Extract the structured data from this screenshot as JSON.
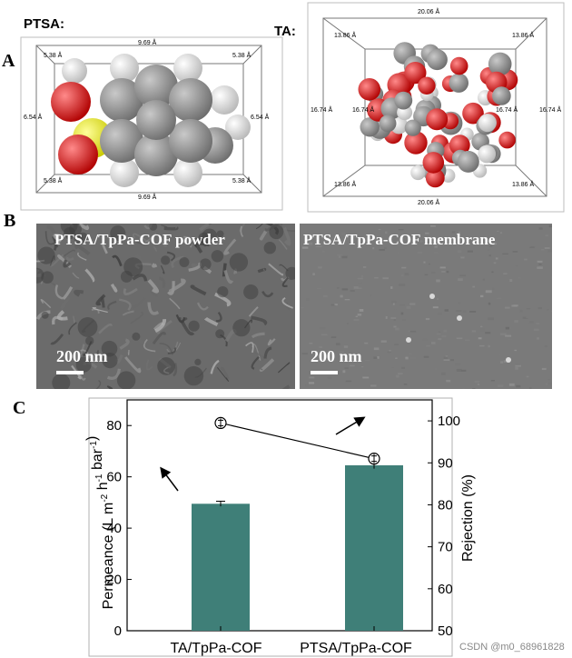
{
  "panels": {
    "a": {
      "letter": "A"
    },
    "b": {
      "letter": "B"
    },
    "c": {
      "letter": "C"
    }
  },
  "ptsa": {
    "title": "PTSA:",
    "top": "9.69 Å",
    "bottom": "9.69 Å",
    "left": "6.54 Å",
    "right": "6.54 Å",
    "corner_tl": "5.38 Å",
    "corner_tr": "5.38 Å",
    "corner_bl": "5.38 Å",
    "corner_br": "5.38 Å"
  },
  "ta": {
    "title": "TA:",
    "top": "20.06 Å",
    "bottom": "20.06 Å",
    "left": "16.74 Å",
    "right": "16.74 Å",
    "inner_left": "16.74 Å",
    "inner_right": "16.74 Å",
    "corner_tl": "13.86 Å",
    "corner_tr": "13.86 Å",
    "corner_bl": "13.86 Å",
    "corner_br": "13.86 Å"
  },
  "sem": {
    "left_title": "PTSA/TpPa-COF powder",
    "right_title": "PTSA/TpPa-COF membrane",
    "left_scale": "200 nm",
    "right_scale": "200 nm"
  },
  "atom_colors": {
    "carbon": "#8a8a8a",
    "hydrogen": "#e6e6e6",
    "oxygen": "#e01515",
    "sulfur": "#e8e83a"
  },
  "chart_data": {
    "type": "bar",
    "categories": [
      "TA/TpPa-COF",
      "PTSA/TpPa-COF"
    ],
    "series": [
      {
        "axis": "left",
        "values": [
          49.5,
          64.5
        ],
        "errors": [
          1.0,
          1.3
        ],
        "color": "#3f7f78"
      },
      {
        "axis": "right",
        "values": [
          99.5,
          91.0
        ],
        "marker": "circle-errorbar"
      }
    ],
    "ylabel": "Permeance (L m-2 h-1 bar-1)",
    "y2label": "Rejection (%)",
    "ylim": [
      0,
      90
    ],
    "y2lim": [
      50,
      105
    ],
    "yticks": [
      0,
      20,
      40,
      60,
      80
    ],
    "y2ticks": [
      50,
      60,
      70,
      80,
      90,
      100
    ],
    "arrows": [
      "left-axis",
      "right-axis"
    ]
  },
  "watermark": "CSDN @m0_68961828"
}
